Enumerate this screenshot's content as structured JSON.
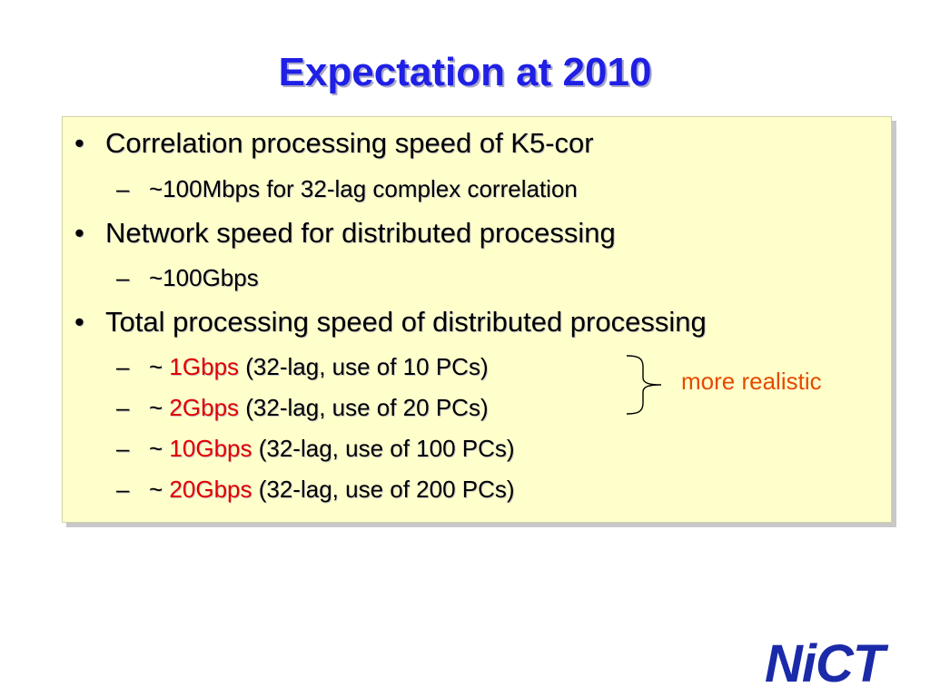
{
  "title": "Expectation at 2010",
  "content": {
    "bullet_char": "•",
    "dash_char": "–",
    "items": [
      {
        "text": "Correlation processing speed of K5-cor",
        "subitems": [
          {
            "text": "~100Mbps for 32-lag complex correlation"
          }
        ]
      },
      {
        "text": "Network speed for distributed processing",
        "subitems": [
          {
            "text": "~100Gbps"
          }
        ]
      },
      {
        "text": "Total processing speed of distributed processing",
        "subitems": [
          {
            "prefix": "~ ",
            "highlight": "1Gbps",
            "suffix": " (32-lag, use of 10 PCs)"
          },
          {
            "prefix": "~ ",
            "highlight": "2Gbps",
            "suffix": " (32-lag, use of 20 PCs)"
          },
          {
            "prefix": "~ ",
            "highlight": "10Gbps",
            "suffix": " (32-lag, use of 100 PCs)"
          },
          {
            "prefix": "~ ",
            "highlight": "20Gbps",
            "suffix": " (32-lag, use of 200 PCs)"
          }
        ]
      }
    ]
  },
  "annotation": {
    "text": "more realistic"
  },
  "logo": {
    "text": "NiCT"
  },
  "colors": {
    "title": "#1f1fe6",
    "box_background": "#ffffcc",
    "highlight": "#e00000",
    "annotation": "#e64a00",
    "logo": "#1a2aa8"
  }
}
